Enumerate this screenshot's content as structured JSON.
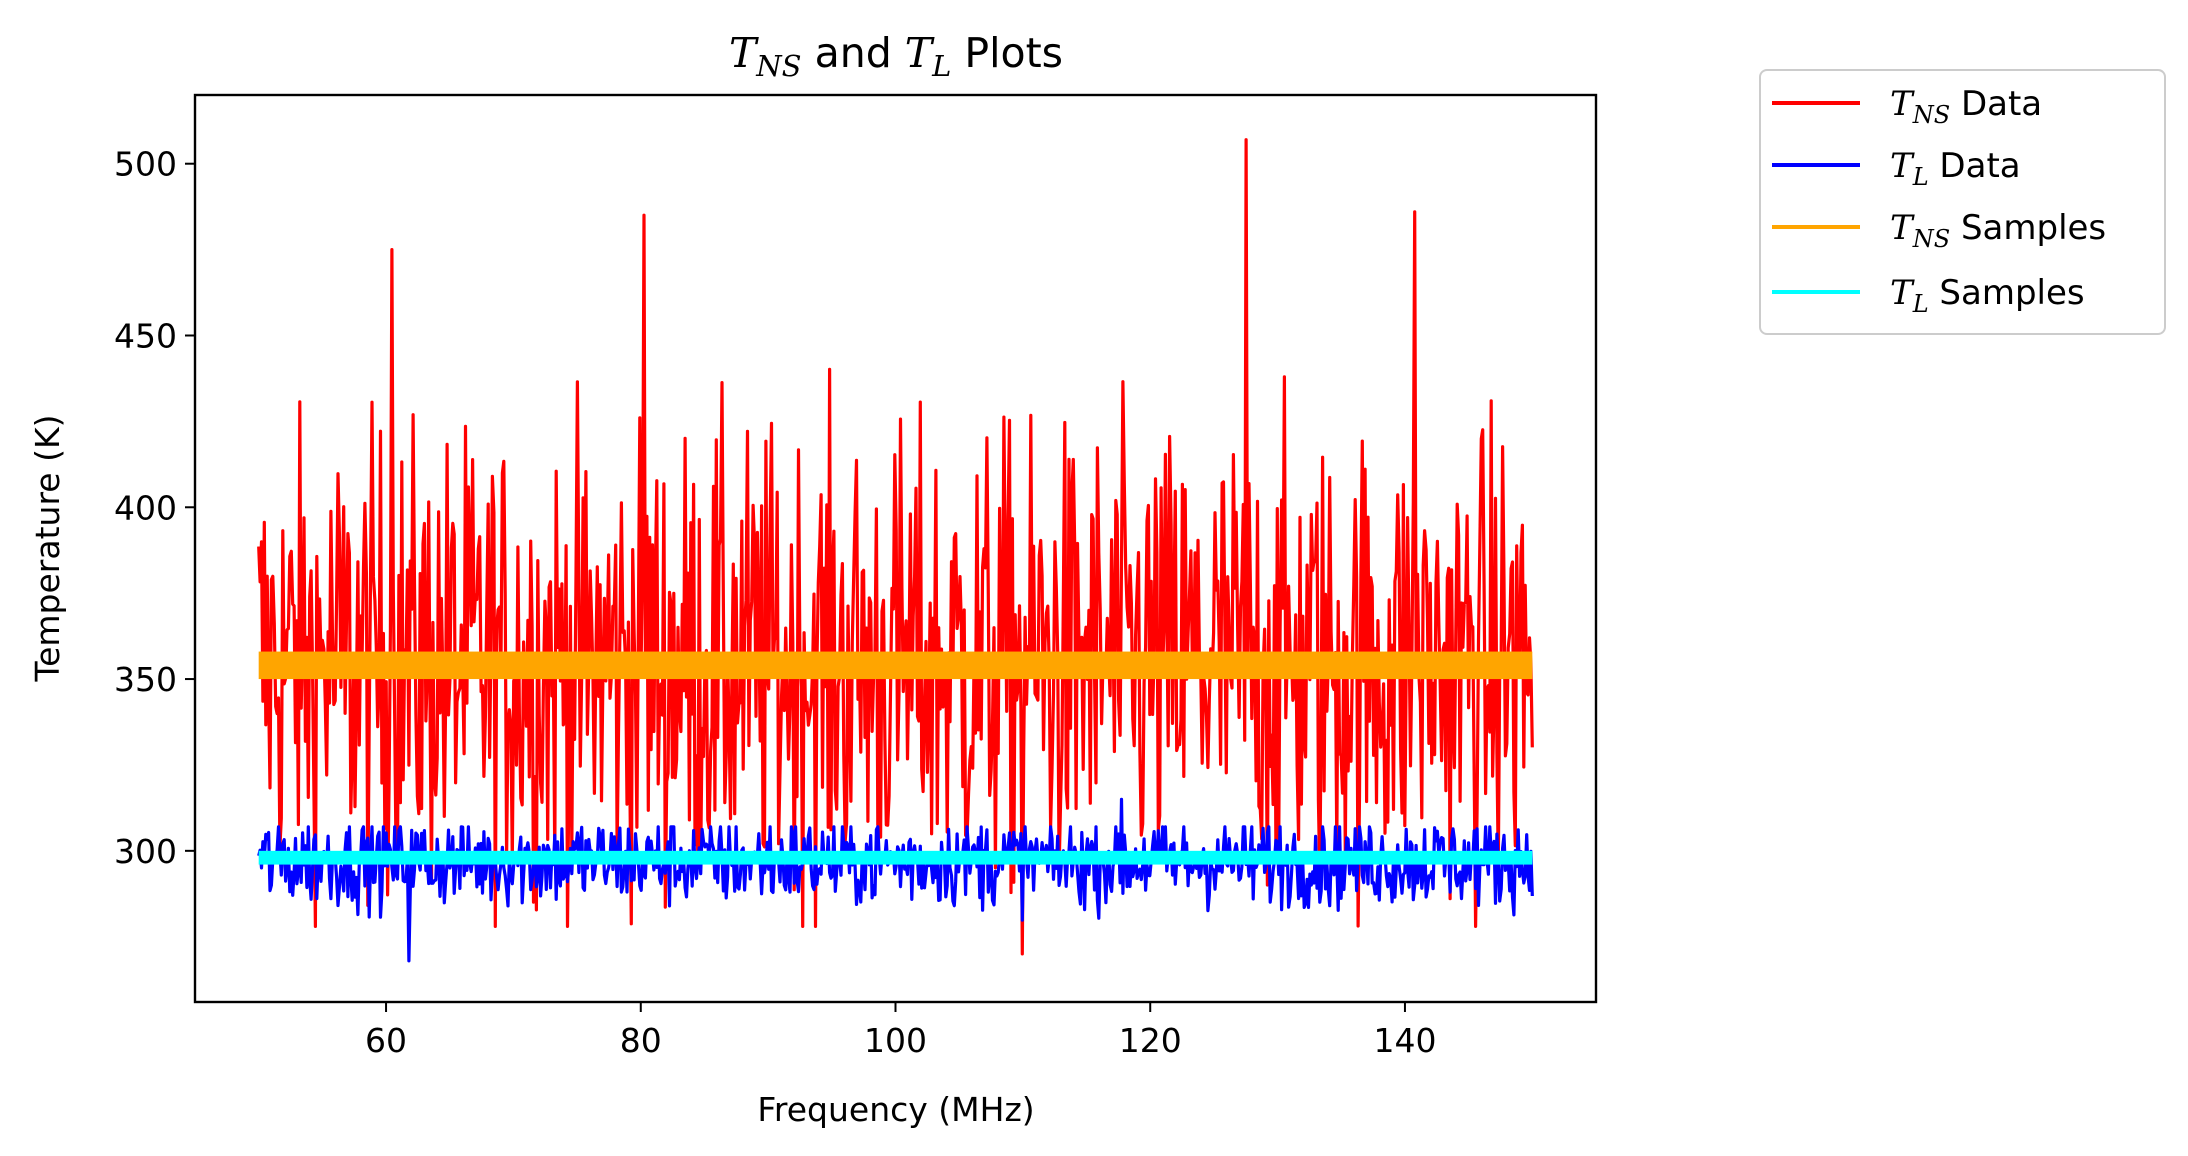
{
  "chart_data": {
    "type": "line",
    "title": {
      "sym": "T",
      "sub": "NS",
      "mid": " and ",
      "sym2": "T",
      "sub2": "L",
      "tail": " Plots"
    },
    "xlabel": "Frequency (MHz)",
    "ylabel": "Temperature (K)",
    "xlim": [
      45,
      155
    ],
    "ylim": [
      256,
      520
    ],
    "xticks": [
      60,
      80,
      100,
      120,
      140
    ],
    "yticks": [
      300,
      350,
      400,
      450,
      500
    ],
    "x_range": [
      50,
      150
    ],
    "grid": false,
    "legend_position": "outside-right",
    "series": [
      {
        "key": "tns_data",
        "name": {
          "sym": "T",
          "sub": "NS",
          "text": " Data"
        },
        "color": "#ff0000",
        "mean": 355,
        "spread": 33,
        "min": 270,
        "max": 507,
        "kind": "noisy"
      },
      {
        "key": "tl_data",
        "name": {
          "sym": "T",
          "sub": "L",
          "text": " Data"
        },
        "color": "#0000ff",
        "mean": 297,
        "spread": 6.5,
        "min": 268,
        "max": 315,
        "kind": "noisy"
      },
      {
        "key": "tns_samples",
        "name": {
          "sym": "T",
          "sub": "NS",
          "text": " Samples"
        },
        "color": "#ffa500",
        "band": [
          350,
          358
        ],
        "kind": "band"
      },
      {
        "key": "tl_samples",
        "name": {
          "sym": "T",
          "sub": "L",
          "text": " Samples"
        },
        "color": "#00ffff",
        "band": [
          296,
          300
        ],
        "kind": "band"
      }
    ],
    "notable_points": [
      {
        "series": "tns_data",
        "x": 127.5,
        "y": 507
      },
      {
        "series": "tns_data",
        "x": 140.8,
        "y": 486
      },
      {
        "series": "tns_data",
        "x": 80.3,
        "y": 485
      },
      {
        "series": "tns_data",
        "x": 60.5,
        "y": 475
      },
      {
        "series": "tns_data",
        "x": 110.0,
        "y": 270
      },
      {
        "series": "tl_data",
        "x": 61.8,
        "y": 268
      },
      {
        "series": "tl_data",
        "x": 117.7,
        "y": 315
      }
    ]
  }
}
